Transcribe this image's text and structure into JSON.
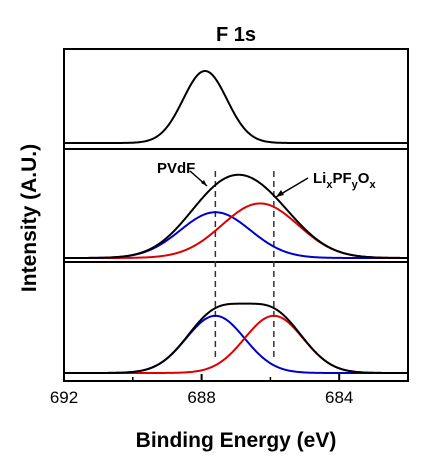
{
  "chart_data": {
    "type": "line",
    "title": "F 1s",
    "xlabel": "Binding Energy (eV)",
    "ylabel": "Intensity (A.U.)",
    "x_range": [
      692,
      682
    ],
    "x_reversed": true,
    "x_ticks": [
      "692",
      "688",
      "684"
    ],
    "x_tick_values": [
      692,
      688,
      684
    ],
    "y_ticks_shown": false,
    "grid": false,
    "legend": "none",
    "colors": {
      "black": "#000000",
      "blue": "#0000cc",
      "red": "#dd0000",
      "guide": "#333333"
    },
    "annotations": {
      "pvdf": "PVdF",
      "lixpfyox": {
        "p1": "Li",
        "s1": "x",
        "p2": "PF",
        "s2": "y",
        "p3": "O",
        "s3": "x"
      }
    },
    "reference_lines_x": [
      687.6,
      685.9
    ],
    "panels": [
      {
        "name": "top",
        "series": [
          {
            "color": "black",
            "kind": "gaussian",
            "center": 687.9,
            "fwhm": 1.5,
            "amplitude": 1.0
          }
        ]
      },
      {
        "name": "middle",
        "series": [
          {
            "color": "blue",
            "kind": "gaussian",
            "center": 687.6,
            "fwhm": 2.4,
            "amplitude": 0.52
          },
          {
            "color": "red",
            "kind": "gaussian",
            "center": 686.3,
            "fwhm": 2.6,
            "amplitude": 0.62
          },
          {
            "color": "black",
            "kind": "sum"
          }
        ]
      },
      {
        "name": "bottom",
        "series": [
          {
            "color": "blue",
            "kind": "gaussian",
            "center": 687.6,
            "fwhm": 2.0,
            "amplitude": 0.65
          },
          {
            "color": "red",
            "kind": "gaussian",
            "center": 685.9,
            "fwhm": 2.0,
            "amplitude": 0.65
          },
          {
            "color": "black",
            "kind": "sum"
          }
        ]
      }
    ]
  }
}
